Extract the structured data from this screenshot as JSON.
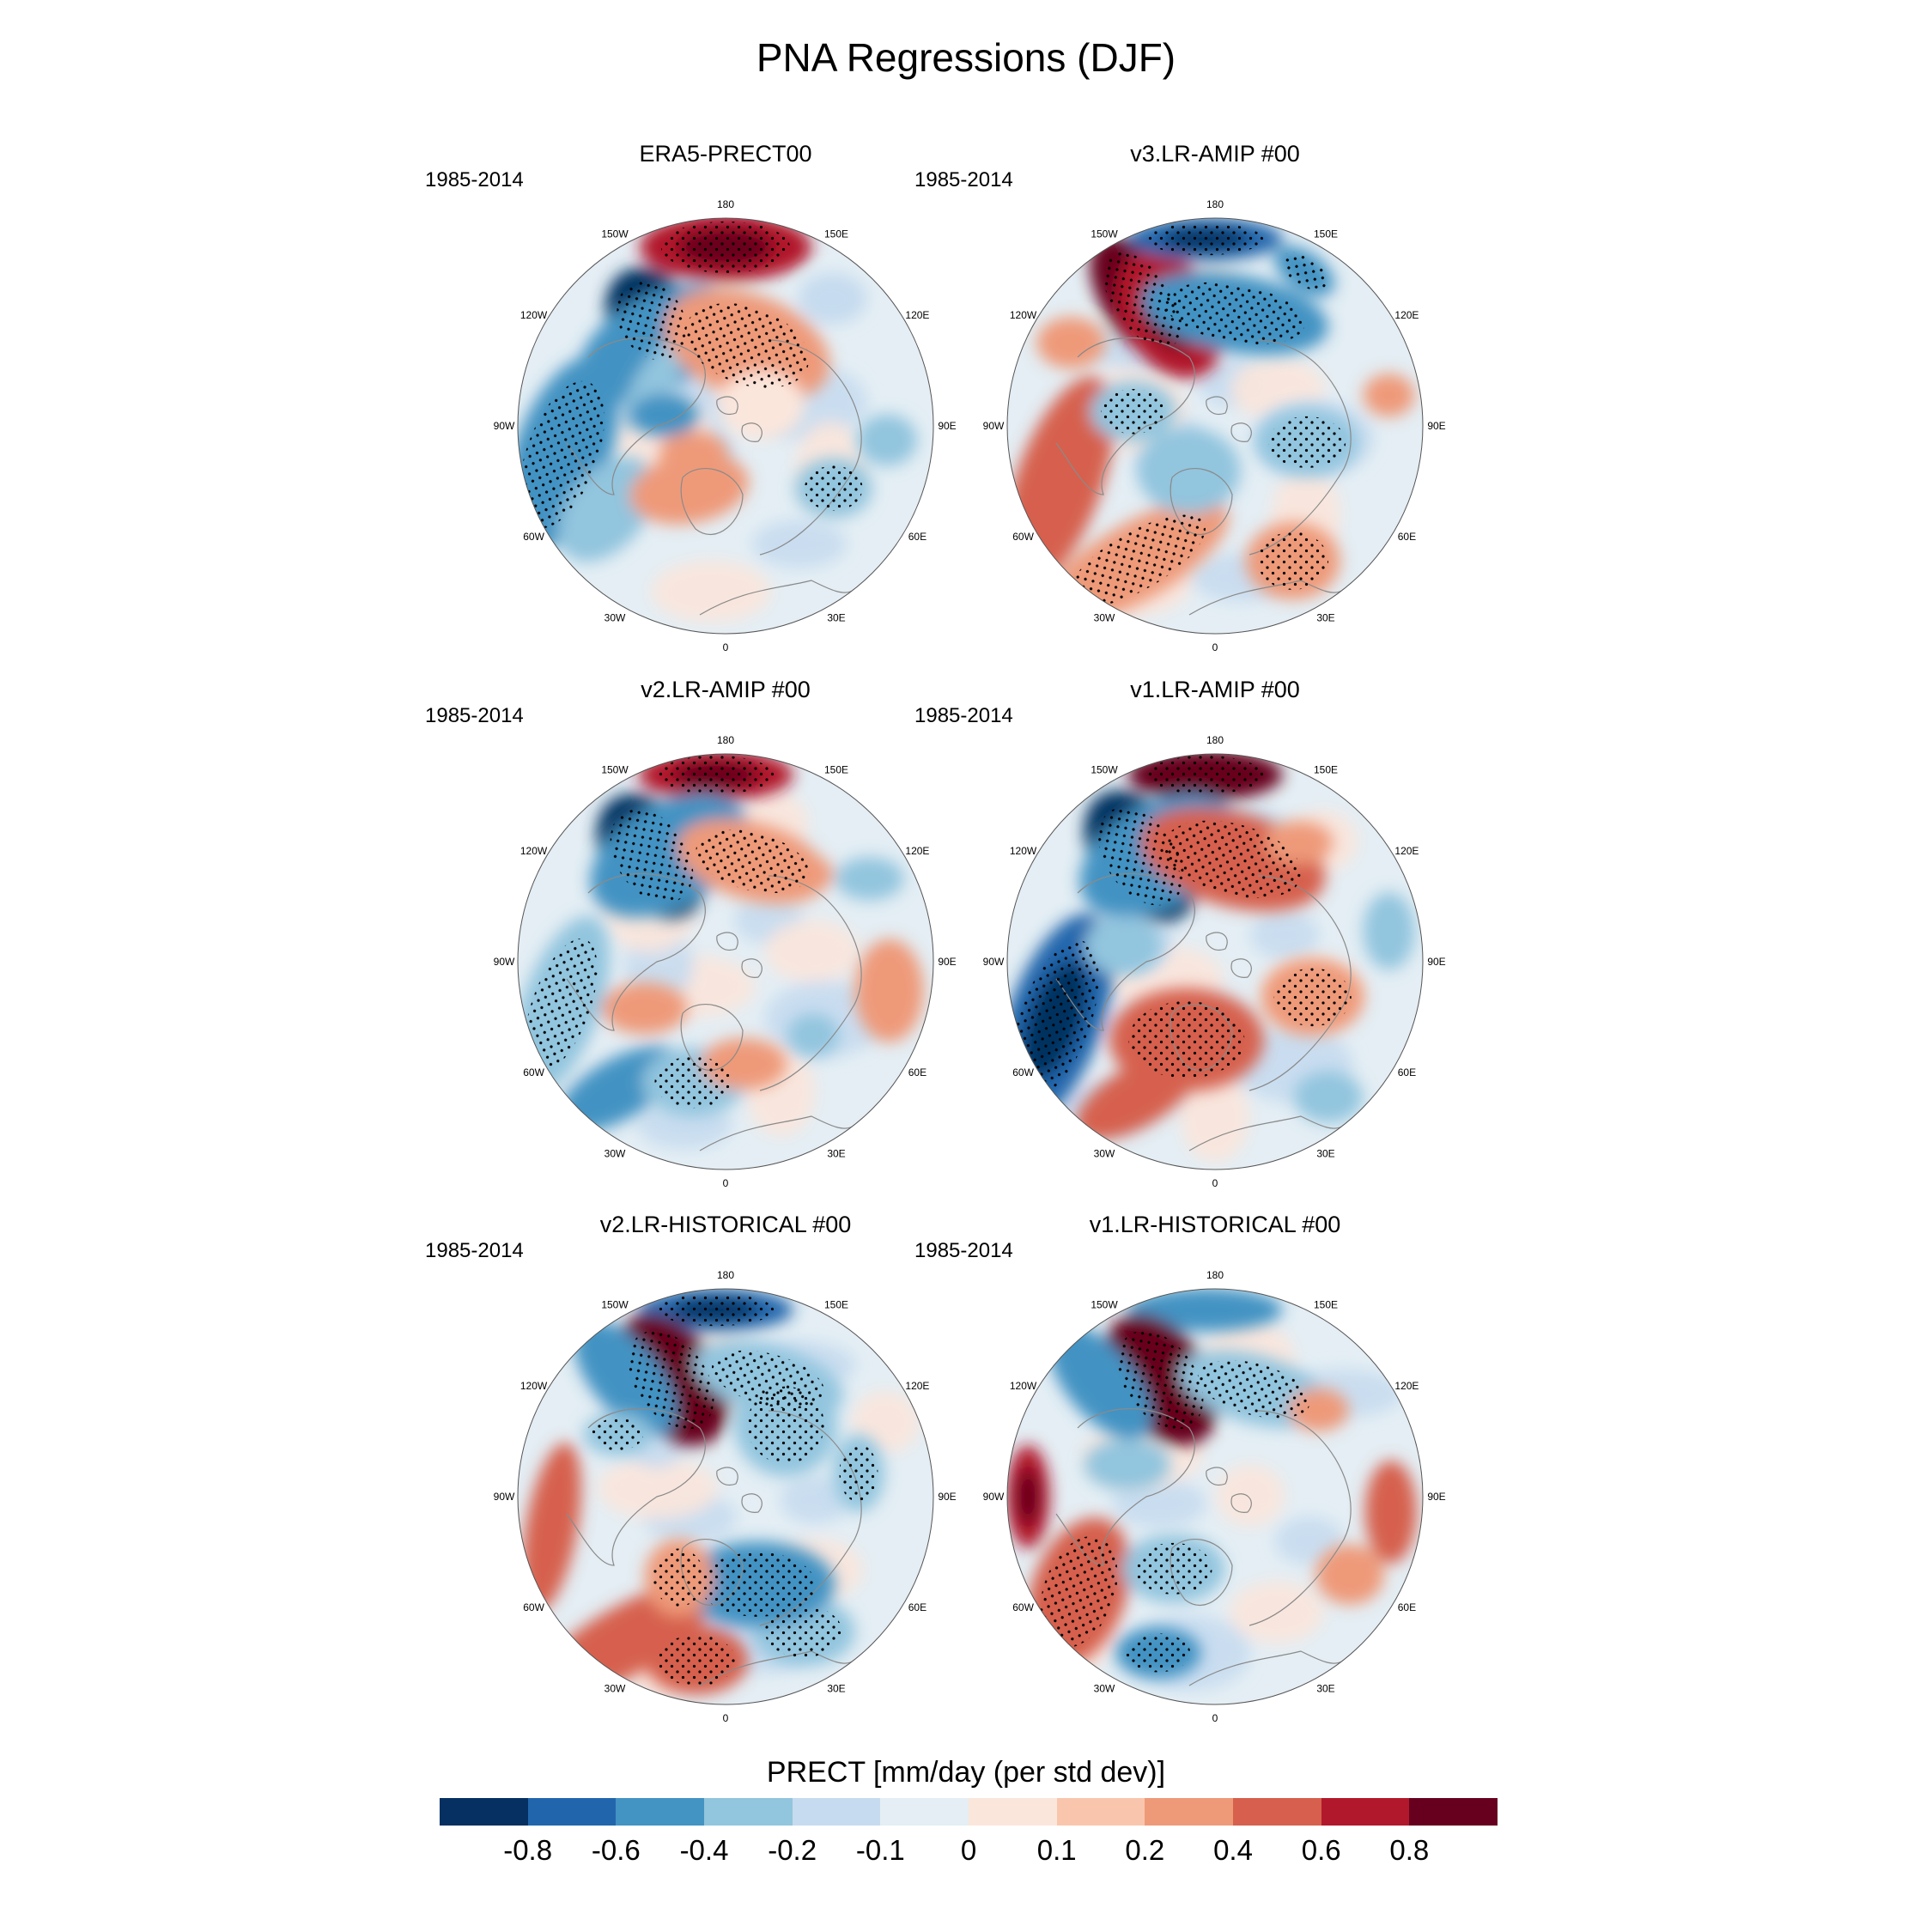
{
  "title": "PNA Regressions (DJF)",
  "period": "1985-2014",
  "panels": [
    {
      "title": "ERA5-PRECT00",
      "pattern": "era5"
    },
    {
      "title": "v3.LR-AMIP  #00",
      "pattern": "v3amip"
    },
    {
      "title": "v2.LR-AMIP  #00",
      "pattern": "v2amip"
    },
    {
      "title": "v1.LR-AMIP  #00",
      "pattern": "v1amip"
    },
    {
      "title": "v2.LR-HISTORICAL  #00",
      "pattern": "v2hist"
    },
    {
      "title": "v1.LR-HISTORICAL  #00",
      "pattern": "v1hist"
    }
  ],
  "longitude_labels": [
    "180",
    "150E",
    "120E",
    "90E",
    "60E",
    "30E",
    "0",
    "30W",
    "60W",
    "90W",
    "120W",
    "150W"
  ],
  "colorbar": {
    "title": "PRECT [mm/day (per std dev)]",
    "colors": [
      "#053061",
      "#2166ac",
      "#4393c3",
      "#92c5de",
      "#c6dbef",
      "#e4eef4",
      "#fbe6dc",
      "#f9c6ad",
      "#ee9a79",
      "#d6604d",
      "#b2182b",
      "#67001f"
    ],
    "ticks": [
      "-0.8",
      "-0.6",
      "-0.4",
      "-0.2",
      "-0.1",
      "0",
      "0.1",
      "0.2",
      "0.4",
      "0.6",
      "0.8"
    ]
  },
  "chart_data": {
    "type": "heatmap",
    "title": "PNA Regressions (DJF)",
    "projection": "north-polar-stereographic",
    "variable": "PRECT",
    "units": "mm/day (per std dev)",
    "levels": [
      -0.8,
      -0.6,
      -0.4,
      -0.2,
      -0.1,
      0,
      0.1,
      0.2,
      0.4,
      0.6,
      0.8
    ],
    "panels": [
      "ERA5-PRECT00",
      "v3.LR-AMIP  #00",
      "v2.LR-AMIP  #00",
      "v1.LR-AMIP  #00",
      "v2.LR-HISTORICAL  #00",
      "v1.LR-HISTORICAL  #00"
    ],
    "period": "1985-2014"
  }
}
